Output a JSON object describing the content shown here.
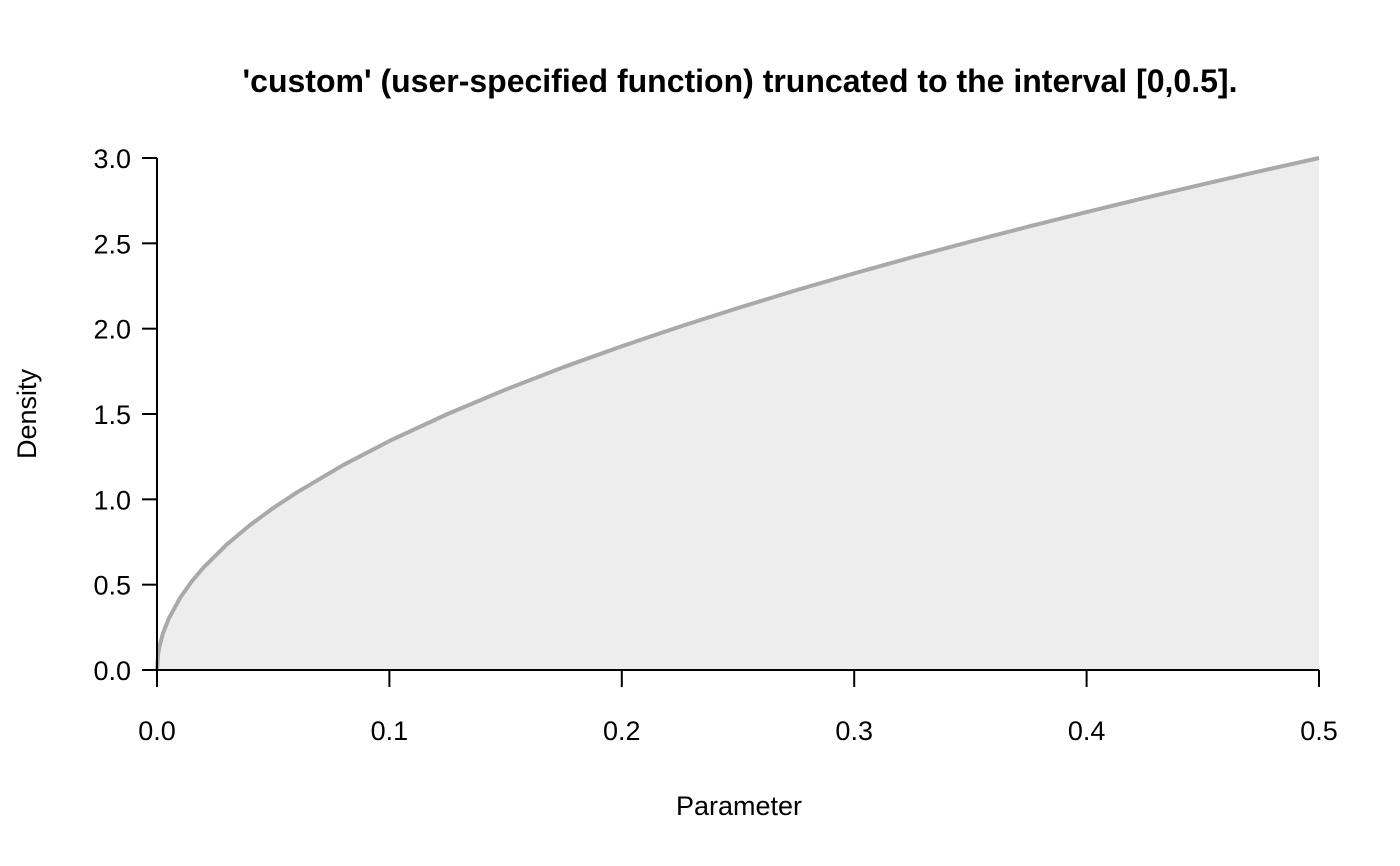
{
  "chart_data": {
    "type": "area",
    "title": "'custom' (user-specified function) truncated to the interval [0,0.5].",
    "xlabel": "Parameter",
    "ylabel": "Density",
    "xlim": [
      0,
      0.5
    ],
    "ylim": [
      0,
      3.0
    ],
    "x_ticks": [
      0.0,
      0.1,
      0.2,
      0.3,
      0.4,
      0.5
    ],
    "x_tick_labels": [
      "0.0",
      "0.1",
      "0.2",
      "0.3",
      "0.4",
      "0.5"
    ],
    "y_ticks": [
      0.0,
      0.5,
      1.0,
      1.5,
      2.0,
      2.5,
      3.0
    ],
    "y_tick_labels": [
      "0.0",
      "0.5",
      "1.0",
      "1.5",
      "2.0",
      "2.5",
      "3.0"
    ],
    "grid": false,
    "series": [
      {
        "x": [
          0,
          0.0005,
          0.001,
          0.0025,
          0.005,
          0.01,
          0.015,
          0.02,
          0.03,
          0.04,
          0.05,
          0.06,
          0.08,
          0.1,
          0.125,
          0.15,
          0.175,
          0.2,
          0.225,
          0.25,
          0.275,
          0.3,
          0.325,
          0.35,
          0.375,
          0.4,
          0.425,
          0.45,
          0.475,
          0.5
        ],
        "y": [
          0,
          0.095,
          0.134,
          0.212,
          0.3,
          0.424,
          0.52,
          0.6,
          0.735,
          0.849,
          0.949,
          1.039,
          1.2,
          1.342,
          1.5,
          1.643,
          1.775,
          1.897,
          2.012,
          2.121,
          2.225,
          2.324,
          2.419,
          2.51,
          2.598,
          2.683,
          2.766,
          2.846,
          2.924,
          3.0
        ]
      }
    ],
    "colors": {
      "line": "#a9a9a9",
      "fill": "#ededed",
      "axis": "#000000"
    }
  }
}
